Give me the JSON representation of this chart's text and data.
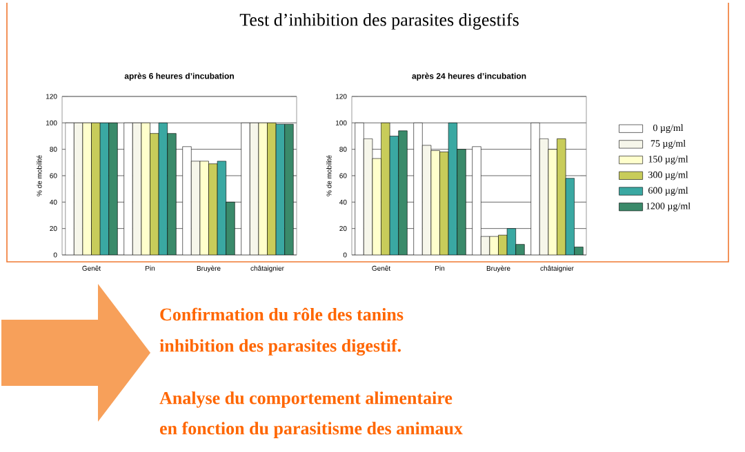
{
  "chart_data": [
    {
      "type": "other",
      "title": "Test d’inhibition des parasites digestifs",
      "annotations": [
        "Confirmation du rôle des tanins",
        "inhibition des parasites digestif.",
        "Analyse du comportement alimentaire",
        "en fonction du parasitisme des animaux"
      ]
    },
    {
      "type": "bar",
      "title": "après 6 heures d’incubation",
      "ylabel": "% de mobilité",
      "categories": [
        "Genêt",
        "Pin",
        "Bruyère",
        "châtaignier"
      ],
      "ylim": [
        0,
        120
      ],
      "yticks": [
        0,
        20,
        40,
        60,
        80,
        100,
        120
      ],
      "grid": "y",
      "legend": false,
      "series": [
        {
          "color": "#ffffff",
          "values": [
            100,
            100,
            82,
            100
          ]
        },
        {
          "color": "#f6f6ea",
          "values": [
            100,
            100,
            71,
            100
          ]
        },
        {
          "color": "#ffffcc",
          "values": [
            100,
            100,
            71,
            100
          ]
        },
        {
          "color": "#c8cc5a",
          "values": [
            100,
            92,
            69,
            100
          ]
        },
        {
          "color": "#3aa8a2",
          "values": [
            100,
            100,
            71,
            99
          ]
        },
        {
          "color": "#3a8a6a",
          "values": [
            100,
            92,
            40,
            99
          ]
        }
      ]
    },
    {
      "type": "bar",
      "title": "après 24 heures d’incubation",
      "ylabel": "% de mobilité",
      "categories": [
        "Genêt",
        "Pin",
        "Bruyère",
        "châtaignier"
      ],
      "ylim": [
        0,
        120
      ],
      "yticks": [
        0,
        20,
        40,
        60,
        80,
        100,
        120
      ],
      "grid": "y",
      "legend": "right",
      "series": [
        {
          "name": "0 µg/ml",
          "color": "#ffffff",
          "values": [
            100,
            100,
            82,
            100
          ]
        },
        {
          "name": "75 µg/ml",
          "color": "#f6f6ea",
          "values": [
            88,
            83,
            14,
            88
          ]
        },
        {
          "name": "150 µg/ml",
          "color": "#ffffcc",
          "values": [
            73,
            79,
            14,
            80
          ]
        },
        {
          "name": "300 µg/ml",
          "color": "#c8cc5a",
          "values": [
            100,
            78,
            15,
            88
          ]
        },
        {
          "name": "600 µg/ml",
          "color": "#3aa8a2",
          "values": [
            90,
            100,
            20,
            58
          ]
        },
        {
          "name": "1200 µg/ml",
          "color": "#3a8a6a",
          "values": [
            94,
            80,
            8,
            6
          ]
        }
      ]
    }
  ]
}
